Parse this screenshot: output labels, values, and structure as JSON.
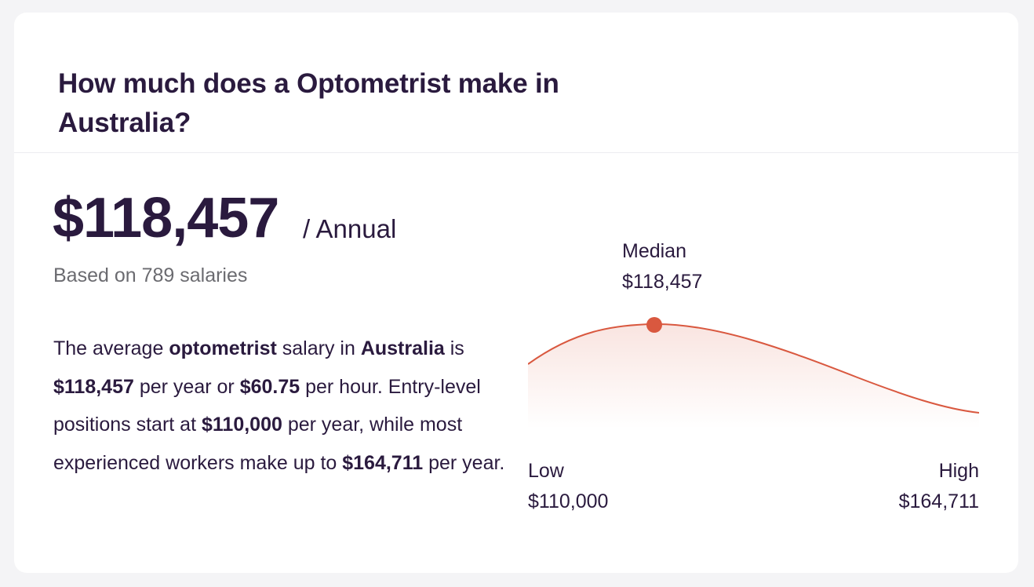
{
  "header": {
    "title": "How much does a Optometrist make in Australia?"
  },
  "salary": {
    "amount": "$118,457",
    "period": "/ Annual",
    "based_on": "Based on 789 salaries"
  },
  "summary": {
    "t1": "The average ",
    "b1": "optometrist",
    "t2": " salary in ",
    "b2": "Australia",
    "t3": " is ",
    "b3": "$118,457",
    "t4": " per year or ",
    "b4": "$60.75",
    "t5": " per hour. Entry-level positions start at ",
    "b5": "$110,000",
    "t6": " per year, while most experienced workers make up to ",
    "b6": "$164,711",
    "t7": " per year."
  },
  "distribution": {
    "median_label": "Median",
    "median_value": "$118,457",
    "low_label": "Low",
    "low_value": "$110,000",
    "high_label": "High",
    "high_value": "$164,711",
    "curve_color": "#d9583f",
    "marker_color": "#d9583f"
  }
}
